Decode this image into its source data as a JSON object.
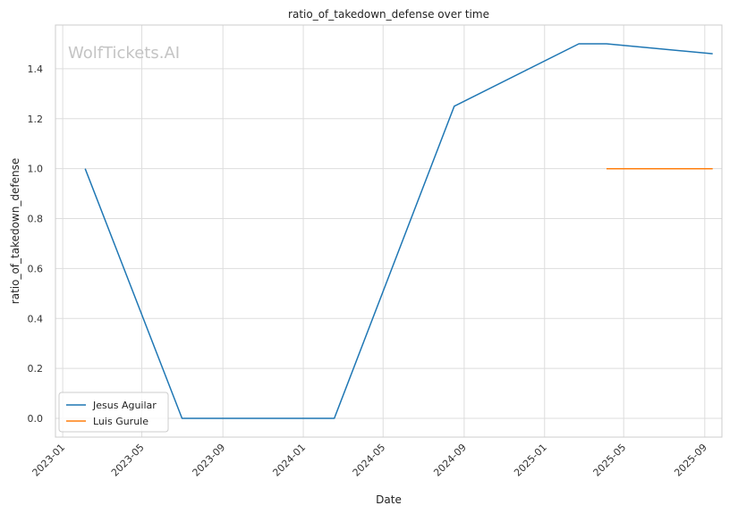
{
  "chart_data": {
    "type": "line",
    "title": "ratio_of_takedown_defense over time",
    "xlabel": "Date",
    "ylabel": "ratio_of_takedown_defense",
    "watermark": "WolfTickets.AI",
    "x_ticks": [
      "2023-01",
      "2023-05",
      "2023-09",
      "2024-01",
      "2024-05",
      "2024-09",
      "2025-01",
      "2025-05",
      "2025-09"
    ],
    "y_ticks": [
      "0.0",
      "0.2",
      "0.4",
      "0.6",
      "0.8",
      "1.0",
      "1.2",
      "1.4"
    ],
    "xlim": [
      "2022-12-21",
      "2025-09-27"
    ],
    "ylim": [
      -0.075,
      1.575
    ],
    "grid": true,
    "legend_position": "lower-left",
    "series": [
      {
        "name": "Jesus Aguilar",
        "color": "#1f77b4",
        "points": [
          {
            "x": "2023-02-04",
            "y": 1.0
          },
          {
            "x": "2023-07-01",
            "y": 0.0
          },
          {
            "x": "2024-02-17",
            "y": 0.0
          },
          {
            "x": "2024-08-17",
            "y": 1.25
          },
          {
            "x": "2025-02-22",
            "y": 1.5
          },
          {
            "x": "2025-04-05",
            "y": 1.5
          },
          {
            "x": "2025-09-13",
            "y": 1.46
          }
        ]
      },
      {
        "name": "Luis Gurule",
        "color": "#ff7f0e",
        "points": [
          {
            "x": "2025-04-05",
            "y": 1.0
          },
          {
            "x": "2025-09-13",
            "y": 1.0
          }
        ]
      }
    ]
  }
}
